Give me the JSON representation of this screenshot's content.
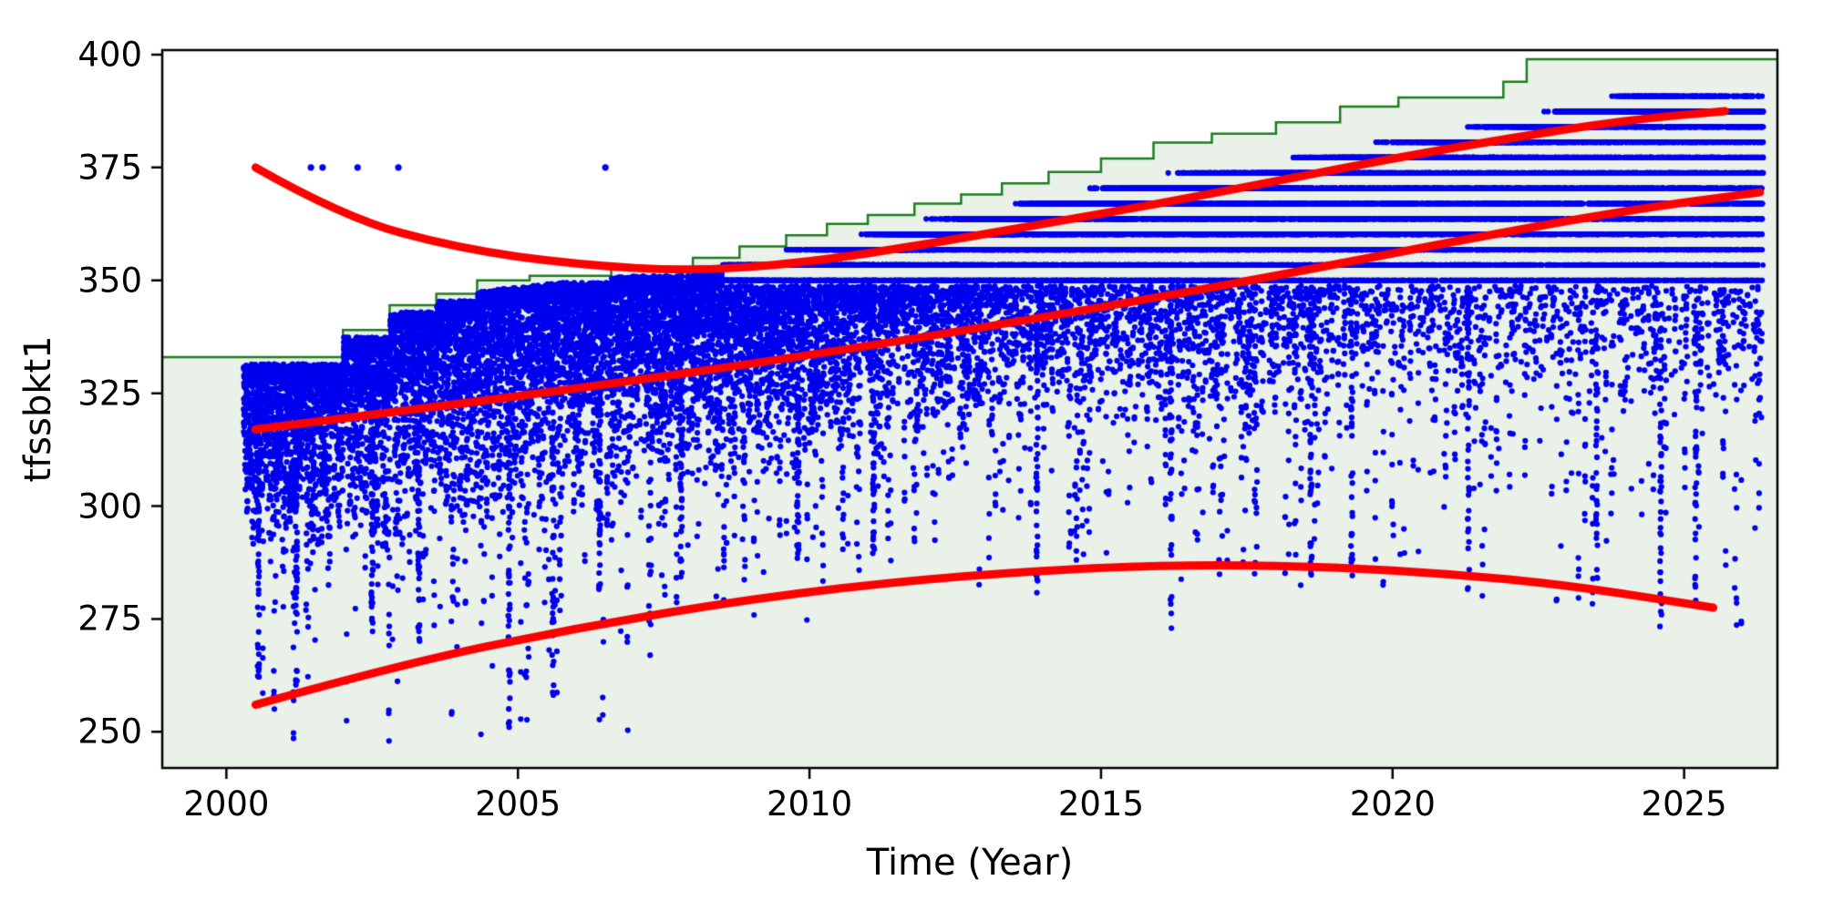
{
  "figure": {
    "xlabel": "Time (Year)",
    "ylabel": "tfssbkt1"
  },
  "chart_data": {
    "type": "scatter",
    "title": "",
    "xlabel": "Time (Year)",
    "ylabel": "tfssbkt1",
    "xlim": [
      1998.9,
      2026.6
    ],
    "ylim": [
      242,
      401
    ],
    "xticks": [
      2000,
      2005,
      2010,
      2015,
      2020,
      2025
    ],
    "yticks": [
      250,
      275,
      300,
      325,
      350,
      375,
      400
    ],
    "grid": false,
    "legend": null,
    "colors": {
      "scatter": "#0000ee",
      "cap_line": "#1e7d1e",
      "cap_fill": "#e9f1e9",
      "trend": "#ff0000",
      "axes": "#000000",
      "background": "#ffffff"
    },
    "cap_step": {
      "comment": "green staircase upper capacity line; value holds until next step",
      "points": [
        [
          1998.9,
          333
        ],
        [
          2002.0,
          339
        ],
        [
          2002.8,
          344.5
        ],
        [
          2003.6,
          347
        ],
        [
          2004.3,
          350
        ],
        [
          2005.2,
          351
        ],
        [
          2006.6,
          352.5
        ],
        [
          2008.0,
          355
        ],
        [
          2008.8,
          357.5
        ],
        [
          2009.6,
          360
        ],
        [
          2010.3,
          362.5
        ],
        [
          2011.0,
          364.5
        ],
        [
          2011.8,
          367
        ],
        [
          2012.6,
          369
        ],
        [
          2013.3,
          371.5
        ],
        [
          2014.1,
          374
        ],
        [
          2015.0,
          377
        ],
        [
          2015.9,
          380.5
        ],
        [
          2016.9,
          382.5
        ],
        [
          2018.0,
          385
        ],
        [
          2019.1,
          388.5
        ],
        [
          2020.1,
          390.5
        ],
        [
          2021.9,
          394
        ],
        [
          2022.3,
          399
        ],
        [
          2026.6,
          399
        ]
      ]
    },
    "trend_curves": [
      {
        "name": "upper",
        "points": [
          [
            2000.5,
            375
          ],
          [
            2002,
            364
          ],
          [
            2004,
            357
          ],
          [
            2006,
            353.5
          ],
          [
            2008,
            352
          ],
          [
            2010,
            354
          ],
          [
            2012,
            358
          ],
          [
            2014,
            362.5
          ],
          [
            2016,
            367
          ],
          [
            2018,
            372
          ],
          [
            2020,
            377
          ],
          [
            2022,
            381.5
          ],
          [
            2024,
            385.5
          ],
          [
            2025.7,
            387.5
          ]
        ]
      },
      {
        "name": "middle",
        "points": [
          [
            2000.5,
            317
          ],
          [
            2003,
            321
          ],
          [
            2006,
            326
          ],
          [
            2009,
            331.5
          ],
          [
            2012,
            337.5
          ],
          [
            2015,
            344
          ],
          [
            2018,
            351
          ],
          [
            2021,
            358.5
          ],
          [
            2024,
            365.5
          ],
          [
            2026.3,
            369.5
          ]
        ]
      },
      {
        "name": "lower",
        "points": [
          [
            2000.5,
            256
          ],
          [
            2003,
            265
          ],
          [
            2006,
            273
          ],
          [
            2009,
            279.5
          ],
          [
            2012,
            284
          ],
          [
            2015,
            286.5
          ],
          [
            2017,
            287
          ],
          [
            2019,
            286.5
          ],
          [
            2021,
            285
          ],
          [
            2023,
            282.5
          ],
          [
            2025.5,
            277.5
          ]
        ]
      }
    ],
    "outliers": [
      [
        2000.5,
        375
      ],
      [
        2001.45,
        375
      ],
      [
        2001.65,
        375
      ],
      [
        2002.25,
        375
      ],
      [
        2002.95,
        375
      ],
      [
        2006.5,
        375
      ]
    ],
    "scatter_envelope": {
      "comment": "dense blue point cloud envelope, by year: top of cloud and bottom of dense bulk",
      "years": [
        2000,
        2002,
        2004,
        2006,
        2008,
        2010,
        2012,
        2014,
        2016,
        2018,
        2020,
        2022,
        2024,
        2026.3
      ],
      "top": [
        333,
        339,
        347,
        350,
        352,
        356,
        362,
        367,
        372,
        375,
        380,
        384,
        390,
        390
      ],
      "low": [
        262,
        264,
        263,
        268,
        278,
        283,
        287,
        289,
        288,
        288,
        287,
        286,
        282,
        280
      ]
    },
    "deep_dips": [
      [
        2000.55,
        262
      ],
      [
        2001.2,
        258
      ],
      [
        2002.5,
        272
      ],
      [
        2003.3,
        270
      ],
      [
        2004.85,
        248
      ],
      [
        2005.6,
        258
      ],
      [
        2006.4,
        281
      ],
      [
        2007.8,
        284
      ],
      [
        2009.8,
        287
      ],
      [
        2011.1,
        289
      ],
      [
        2013.9,
        278
      ],
      [
        2016.2,
        272
      ],
      [
        2018.6,
        282
      ],
      [
        2019.3,
        284
      ],
      [
        2021.3,
        279
      ],
      [
        2023.5,
        281
      ],
      [
        2024.6,
        272
      ],
      [
        2025.2,
        275
      ]
    ],
    "banding": {
      "comment": "horizontal quantized stripes visible in upper part of cloud after ~2008",
      "base_level": 350,
      "gap": 3.4,
      "start_year": 2008.5
    },
    "x_range_data": [
      2000.3,
      2026.35
    ]
  }
}
